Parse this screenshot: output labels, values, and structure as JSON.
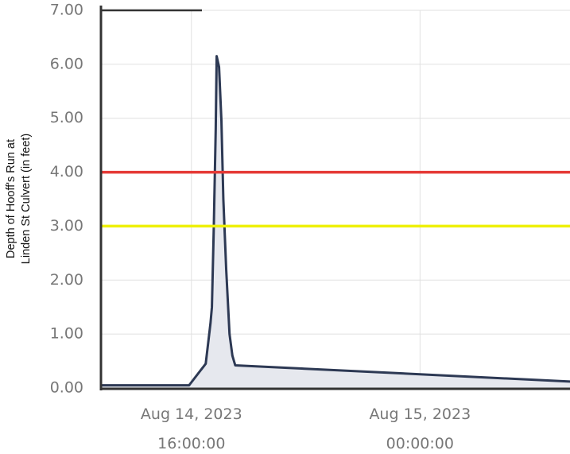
{
  "chart_data": {
    "type": "area",
    "ylabel": [
      "Depth of Hooff's Run at",
      "Linden St Culvert (in feet)"
    ],
    "ylim": [
      0,
      7
    ],
    "yticks": [
      0,
      1,
      2,
      3,
      4,
      5,
      6,
      7
    ],
    "ytick_labels": [
      "0.00",
      "1.00",
      "2.00",
      "3.00",
      "4.00",
      "5.00",
      "6.00",
      "7.00"
    ],
    "xlim": [
      "2023-08-14T12:50",
      "2023-08-15T05:15"
    ],
    "xticks": [
      {
        "value": "2023-08-14T16:00",
        "label": [
          "Aug 14, 2023",
          "16:00:00"
        ]
      },
      {
        "value": "2023-08-15T00:00",
        "label": [
          "Aug 15, 2023",
          "00:00:00"
        ]
      }
    ],
    "grid": true,
    "thresholds": [
      {
        "value": 4.0,
        "color": "#e53935"
      },
      {
        "value": 3.0,
        "color": "#eef00a"
      }
    ],
    "series": [
      {
        "color": "#2d3954",
        "fill": "#e6e8ee",
        "points": [
          {
            "x": "2023-08-14T12:50",
            "y": 0.05
          },
          {
            "x": "2023-08-14T15:55",
            "y": 0.05
          },
          {
            "x": "2023-08-14T16:30",
            "y": 0.45
          },
          {
            "x": "2023-08-14T16:40",
            "y": 1.2
          },
          {
            "x": "2023-08-14T16:43",
            "y": 1.5
          },
          {
            "x": "2023-08-14T16:47",
            "y": 3.0
          },
          {
            "x": "2023-08-14T16:51",
            "y": 4.8
          },
          {
            "x": "2023-08-14T16:53",
            "y": 6.15
          },
          {
            "x": "2023-08-14T16:58",
            "y": 5.95
          },
          {
            "x": "2023-08-14T17:03",
            "y": 4.95
          },
          {
            "x": "2023-08-14T17:07",
            "y": 3.5
          },
          {
            "x": "2023-08-14T17:13",
            "y": 2.2
          },
          {
            "x": "2023-08-14T17:20",
            "y": 1.0
          },
          {
            "x": "2023-08-14T17:26",
            "y": 0.6
          },
          {
            "x": "2023-08-14T17:32",
            "y": 0.42
          },
          {
            "x": "2023-08-15T05:15",
            "y": 0.12
          }
        ]
      }
    ]
  }
}
